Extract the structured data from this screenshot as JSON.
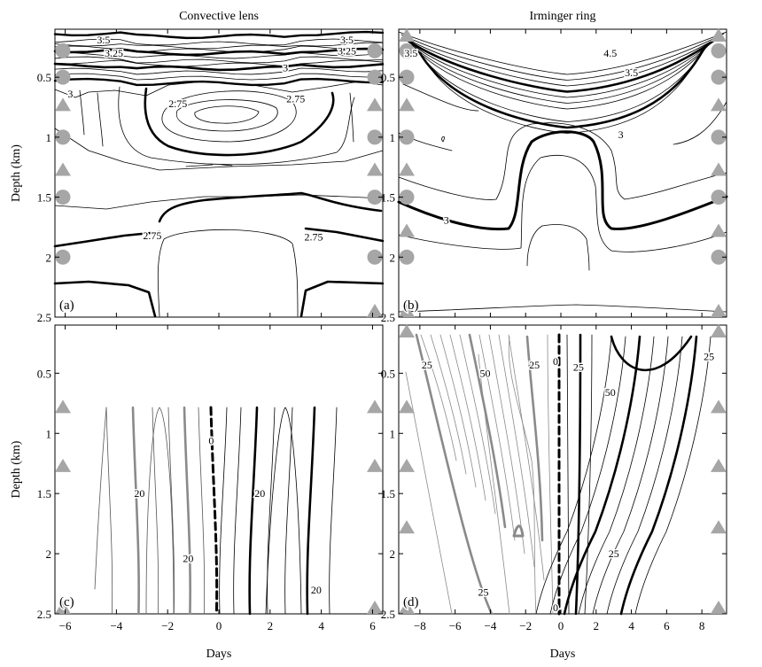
{
  "chart_data": [
    {
      "panel": "(a)",
      "title": "Convective lens",
      "type": "contour",
      "xlim": [
        -6.4,
        6.4
      ],
      "ylim": [
        2.5,
        0.1
      ],
      "xticks": [
        -6,
        -4,
        -2,
        0,
        2,
        4,
        6
      ],
      "yticks": [
        0.5,
        1,
        1.5,
        2,
        2.5
      ],
      "xlabel": "",
      "ylabel": "Depth (km)",
      "contour_labels": [
        {
          "text": "3.5",
          "x": -4.5,
          "y": 0.19
        },
        {
          "text": "3.25",
          "x": -4.1,
          "y": 0.3
        },
        {
          "text": "3.5",
          "x": 5.0,
          "y": 0.19
        },
        {
          "text": "3.25",
          "x": 5.0,
          "y": 0.28
        },
        {
          "text": "3",
          "x": 2.6,
          "y": 0.42
        },
        {
          "text": "3",
          "x": -5.8,
          "y": 0.64
        },
        {
          "text": "2.75",
          "x": -1.6,
          "y": 0.72
        },
        {
          "text": "2.75",
          "x": 3.0,
          "y": 0.68
        },
        {
          "text": "2.75",
          "x": -2.6,
          "y": 1.82
        },
        {
          "text": "2.75",
          "x": 3.7,
          "y": 1.83
        }
      ],
      "markers": [
        {
          "shape": "circle",
          "side": "left",
          "depths": [
            0.28,
            0.5,
            1.0,
            1.5,
            2.0
          ]
        },
        {
          "shape": "triangle",
          "side": "left",
          "depths": [
            0.73,
            1.27
          ]
        },
        {
          "shape": "circle",
          "side": "right",
          "depths": [
            0.28,
            0.5,
            1.0,
            1.5,
            2.0
          ]
        },
        {
          "shape": "triangle",
          "side": "right",
          "depths": [
            0.73,
            1.27,
            2.5
          ]
        }
      ]
    },
    {
      "panel": "(b)",
      "title": "Irminger ring",
      "type": "contour",
      "xlim": [
        -9.2,
        9.4
      ],
      "ylim": [
        2.5,
        0.1
      ],
      "xticks": [
        -8,
        -6,
        -4,
        -2,
        0,
        2,
        4,
        6,
        8
      ],
      "yticks": [
        0.5,
        1,
        1.5,
        2,
        2.5
      ],
      "xlabel": "",
      "ylabel": "",
      "contour_labels": [
        {
          "text": "3.5",
          "x": -8.5,
          "y": 0.3
        },
        {
          "text": "4.5",
          "x": 2.8,
          "y": 0.3
        },
        {
          "text": "3.5",
          "x": 4.0,
          "y": 0.46
        },
        {
          "text": "3",
          "x": 3.4,
          "y": 0.98
        },
        {
          "text": "3",
          "x": -6.5,
          "y": 1.69
        }
      ],
      "markers": [
        {
          "shape": "circle",
          "side": "left",
          "depths": [
            0.28,
            0.5,
            1.0,
            1.5,
            2.0
          ]
        },
        {
          "shape": "triangle",
          "side": "left",
          "depths": [
            0.14,
            0.73,
            1.27,
            1.78,
            2.5
          ]
        },
        {
          "shape": "circle",
          "side": "right",
          "depths": [
            0.28,
            0.5,
            1.0,
            1.5,
            2.0
          ]
        },
        {
          "shape": "triangle",
          "side": "right",
          "depths": [
            0.14,
            0.73,
            1.27,
            1.78,
            2.5
          ]
        }
      ]
    },
    {
      "panel": "(c)",
      "title": "",
      "type": "contour",
      "xlim": [
        -6.4,
        6.4
      ],
      "ylim": [
        2.5,
        0.1
      ],
      "xticks": [
        -6,
        -4,
        -2,
        0,
        2,
        4,
        6
      ],
      "yticks": [
        0.5,
        1,
        1.5,
        2,
        2.5
      ],
      "xlabel": "Days",
      "ylabel": "Depth (km)",
      "contour_labels": [
        {
          "text": "0",
          "x": -0.3,
          "y": 1.06
        },
        {
          "text": "20",
          "x": -3.1,
          "y": 1.5
        },
        {
          "text": "20",
          "x": 1.6,
          "y": 1.5
        },
        {
          "text": "20",
          "x": -1.2,
          "y": 2.04
        },
        {
          "text": "20",
          "x": 3.8,
          "y": 2.3
        }
      ],
      "markers": [
        {
          "shape": "triangle",
          "side": "left",
          "depths": [
            0.78,
            1.27,
            2.5
          ]
        },
        {
          "shape": "triangle",
          "side": "right",
          "depths": [
            0.78,
            1.27,
            2.5
          ]
        }
      ]
    },
    {
      "panel": "(d)",
      "title": "",
      "type": "contour",
      "xlim": [
        -9.2,
        9.4
      ],
      "ylim": [
        2.5,
        0.1
      ],
      "xticks": [
        -8,
        -6,
        -4,
        -2,
        0,
        2,
        4,
        6,
        8
      ],
      "yticks": [
        0.5,
        1,
        1.5,
        2,
        2.5
      ],
      "xlabel": "Days",
      "ylabel": "",
      "contour_labels": [
        {
          "text": "25",
          "x": -7.6,
          "y": 0.43
        },
        {
          "text": "50",
          "x": -4.3,
          "y": 0.5
        },
        {
          "text": "25",
          "x": -1.5,
          "y": 0.43
        },
        {
          "text": "0",
          "x": -0.3,
          "y": 0.4
        },
        {
          "text": "25",
          "x": 1.0,
          "y": 0.45
        },
        {
          "text": "50",
          "x": 2.8,
          "y": 0.66
        },
        {
          "text": "25",
          "x": 8.4,
          "y": 0.36
        },
        {
          "text": "25",
          "x": 3.0,
          "y": 2.0
        },
        {
          "text": "25",
          "x": -4.4,
          "y": 2.32
        },
        {
          "text": "0",
          "x": -0.3,
          "y": 2.45
        }
      ],
      "markers": [
        {
          "shape": "triangle",
          "side": "left",
          "depths": [
            0.15,
            0.78,
            1.27,
            1.78,
            2.45
          ]
        },
        {
          "shape": "triangle",
          "side": "right",
          "depths": [
            0.15,
            0.78,
            1.27,
            1.78,
            2.45
          ]
        }
      ]
    }
  ]
}
